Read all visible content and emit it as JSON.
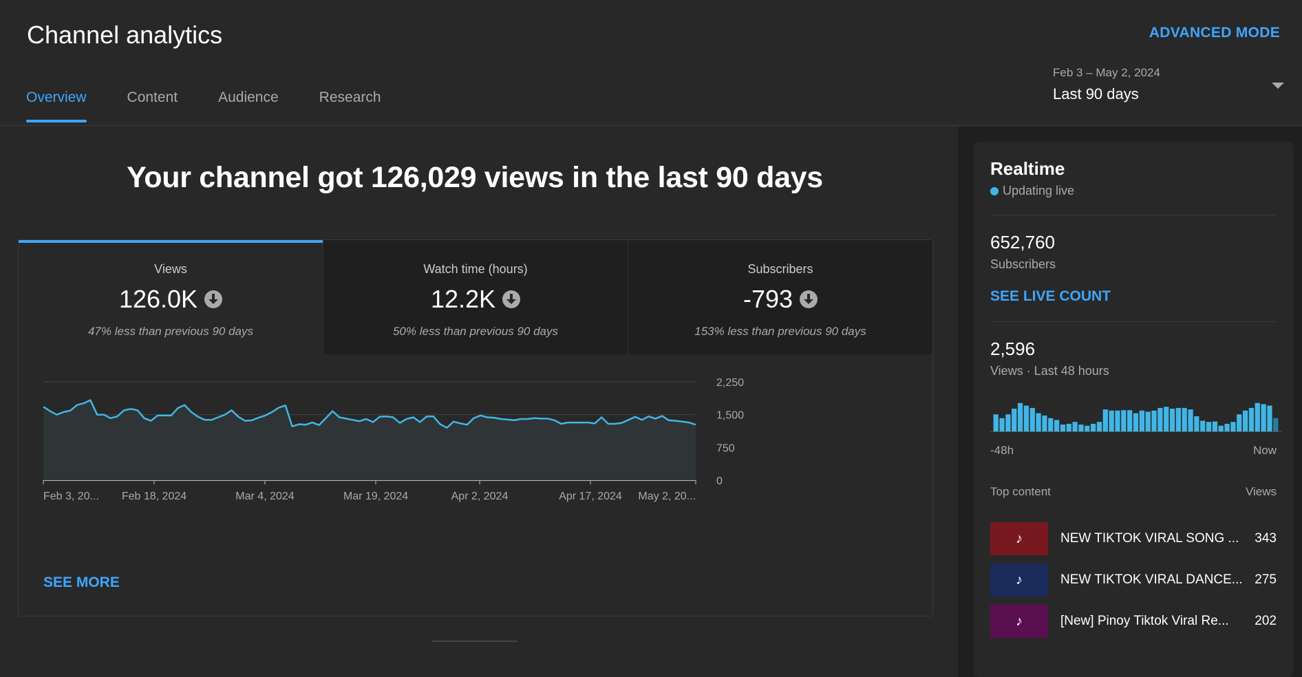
{
  "header": {
    "title": "Channel analytics",
    "advanced_mode": "ADVANCED MODE",
    "tabs": [
      {
        "label": "Overview",
        "active": true
      },
      {
        "label": "Content",
        "active": false
      },
      {
        "label": "Audience",
        "active": false
      },
      {
        "label": "Research",
        "active": false
      }
    ],
    "date_range": "Feb 3 – May 2, 2024",
    "date_preset": "Last 90 days"
  },
  "main": {
    "headline": "Your channel got 126,029 views in the last 90 days",
    "metrics": [
      {
        "label": "Views",
        "value": "126.0K",
        "change": "47% less than previous 90 days"
      },
      {
        "label": "Watch time (hours)",
        "value": "12.2K",
        "change": "50% less than previous 90 days"
      },
      {
        "label": "Subscribers",
        "value": "-793",
        "change": "153% less than previous 90 days"
      }
    ],
    "see_more": "SEE MORE"
  },
  "chart_data": {
    "type": "area",
    "series": [
      {
        "values": [
          1680,
          1580,
          1500,
          1560,
          1590,
          1720,
          1760,
          1830,
          1500,
          1500,
          1420,
          1460,
          1600,
          1630,
          1600,
          1420,
          1360,
          1480,
          1480,
          1480,
          1650,
          1720,
          1560,
          1450,
          1380,
          1380,
          1440,
          1500,
          1600,
          1450,
          1360,
          1370,
          1430,
          1480,
          1560,
          1660,
          1710,
          1230,
          1280,
          1270,
          1320,
          1260,
          1420,
          1580,
          1440,
          1410,
          1380,
          1350,
          1400,
          1330,
          1450,
          1460,
          1440,
          1310,
          1400,
          1440,
          1330,
          1460,
          1460,
          1280,
          1200,
          1340,
          1300,
          1270,
          1420,
          1480,
          1440,
          1430,
          1400,
          1390,
          1370,
          1400,
          1400,
          1420,
          1410,
          1410,
          1370,
          1290,
          1320,
          1320,
          1320,
          1320,
          1300,
          1440,
          1290,
          1290,
          1310,
          1380,
          1450,
          1380,
          1460,
          1410,
          1470,
          1370,
          1360,
          1340,
          1320,
          1270
        ]
      }
    ],
    "x_ticks": [
      "Feb 3, 20...",
      "Feb 18, 2024",
      "Mar 4, 2024",
      "Mar 19, 2024",
      "Apr 2, 2024",
      "Apr 17, 2024",
      "May 2, 20..."
    ],
    "y_ticks": [
      "2,250",
      "1,500",
      "750",
      "0"
    ],
    "ylim": [
      0,
      2250
    ],
    "grid": true,
    "colors": {
      "line": "#41b6e6",
      "fill": "#2f3436",
      "grid": "#444444",
      "axis": "#bbbbbb"
    }
  },
  "realtime": {
    "title": "Realtime",
    "status": "Updating live",
    "subscribers_value": "652,760",
    "subscribers_label": "Subscribers",
    "see_live_count": "SEE LIVE COUNT",
    "views_value": "2,596",
    "views_label": "Views · Last 48 hours",
    "bars": [
      0.45,
      0.35,
      0.45,
      0.6,
      0.75,
      0.68,
      0.62,
      0.48,
      0.42,
      0.35,
      0.3,
      0.18,
      0.2,
      0.25,
      0.18,
      0.15,
      0.2,
      0.25,
      0.58,
      0.55,
      0.55,
      0.56,
      0.56,
      0.48,
      0.55,
      0.52,
      0.55,
      0.62,
      0.65,
      0.6,
      0.62,
      0.62,
      0.58,
      0.4,
      0.28,
      0.25,
      0.26,
      0.15,
      0.2,
      0.25,
      0.45,
      0.55,
      0.62,
      0.75,
      0.72,
      0.68,
      0.35
    ],
    "axis_start": "-48h",
    "axis_end": "Now",
    "top_content_label": "Top content",
    "views_column": "Views",
    "top_content": [
      {
        "title": "NEW TIKTOK VIRAL SONG ...",
        "views": "343",
        "thumb_color": "#7a1820",
        "thumb_text": "♪"
      },
      {
        "title": "NEW TIKTOK VIRAL DANCE...",
        "views": "275",
        "thumb_color": "#1a2a5a",
        "thumb_text": "♪"
      },
      {
        "title": "[New] Pinoy Tiktok Viral Re...",
        "views": "202",
        "thumb_color": "#5a1050",
        "thumb_text": "♪"
      }
    ]
  }
}
